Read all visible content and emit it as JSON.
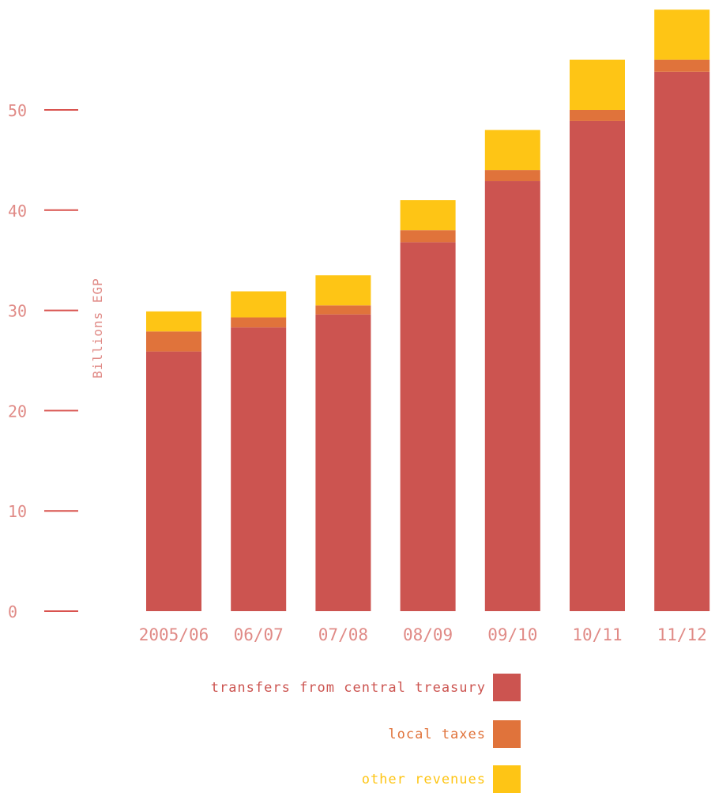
{
  "chart_data": {
    "type": "bar",
    "stacked": true,
    "ylabel": "Billions EGP",
    "xlabel": "",
    "ylim": [
      0,
      60
    ],
    "yticks": [
      0,
      10,
      20,
      30,
      40,
      50
    ],
    "grid": false,
    "legend_position": "bottom-center",
    "categories": [
      "2005/06",
      "06/07",
      "07/08",
      "08/09",
      "09/10",
      "10/11",
      "11/12"
    ],
    "series": [
      {
        "name": "transfers from central treasury",
        "color": "#cc5450",
        "values": [
          25.9,
          28.3,
          29.6,
          36.8,
          42.9,
          48.9,
          53.8
        ]
      },
      {
        "name": "local taxes",
        "color": "#e0733b",
        "values": [
          2.0,
          1.0,
          0.9,
          1.2,
          1.1,
          1.1,
          1.2
        ]
      },
      {
        "name": "other revenues",
        "color": "#fec515",
        "values": [
          2.0,
          2.6,
          3.0,
          3.0,
          4.0,
          5.0,
          5.0
        ]
      }
    ],
    "axis_color": "#d9534f",
    "label_color": "#e08a86"
  }
}
